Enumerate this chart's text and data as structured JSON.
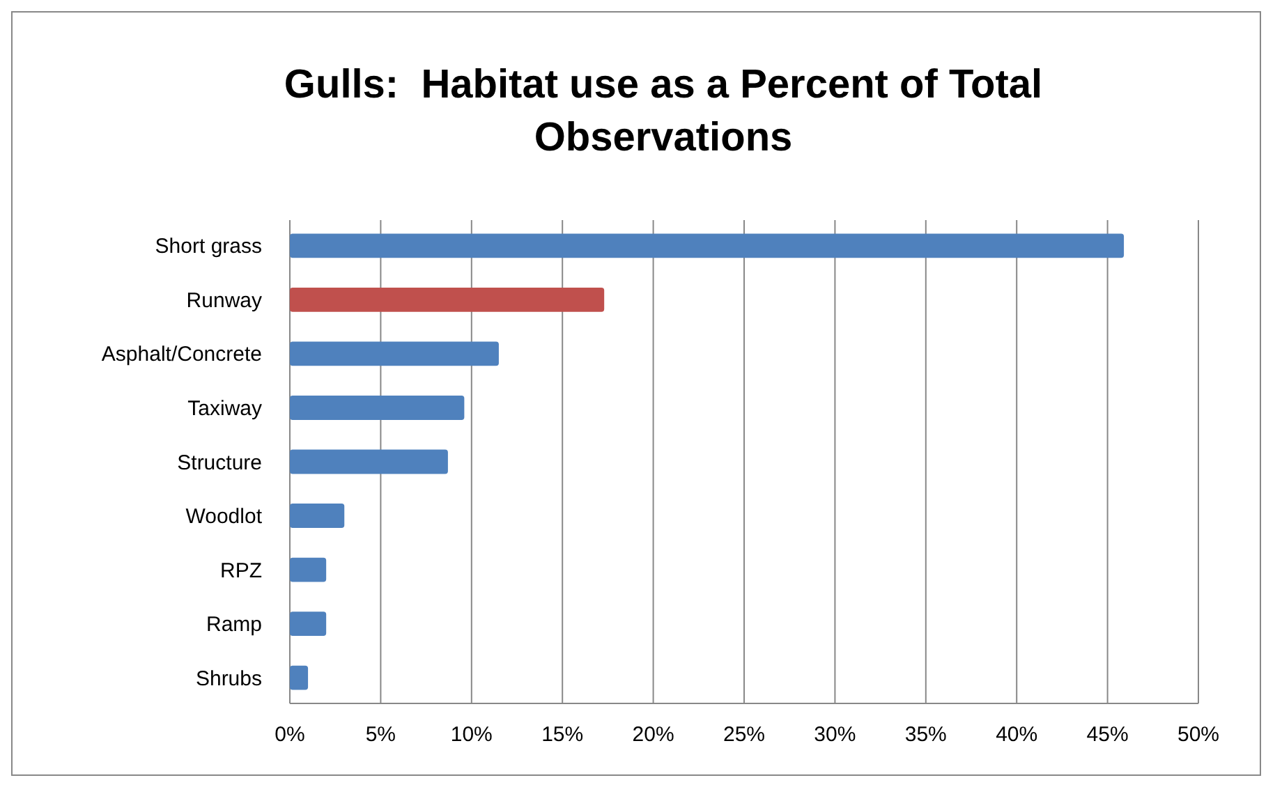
{
  "chart_data": {
    "type": "bar",
    "orientation": "horizontal",
    "title": "Gulls:  Habitat use as a Percent of Total Observations",
    "categories": [
      "Short grass",
      "Runway",
      "Asphalt/Concrete",
      "Taxiway",
      "Structure",
      "Woodlot",
      "RPZ",
      "Ramp",
      "Shrubs"
    ],
    "values": [
      45.9,
      17.3,
      11.5,
      9.6,
      8.7,
      3.0,
      2.0,
      2.0,
      1.0
    ],
    "colors": [
      "#4f81bd",
      "#c0504d",
      "#4f81bd",
      "#4f81bd",
      "#4f81bd",
      "#4f81bd",
      "#4f81bd",
      "#4f81bd",
      "#4f81bd"
    ],
    "xlim": [
      0,
      50
    ],
    "xticks": [
      {
        "value": 0,
        "label": "0%"
      },
      {
        "value": 5,
        "label": "5%"
      },
      {
        "value": 10,
        "label": "10%"
      },
      {
        "value": 15,
        "label": "15%"
      },
      {
        "value": 20,
        "label": "20%"
      },
      {
        "value": 25,
        "label": "25%"
      },
      {
        "value": 30,
        "label": "30%"
      },
      {
        "value": 35,
        "label": "35%"
      },
      {
        "value": 40,
        "label": "40%"
      },
      {
        "value": 45,
        "label": "45%"
      },
      {
        "value": 50,
        "label": "50%"
      }
    ],
    "grid": "x"
  }
}
